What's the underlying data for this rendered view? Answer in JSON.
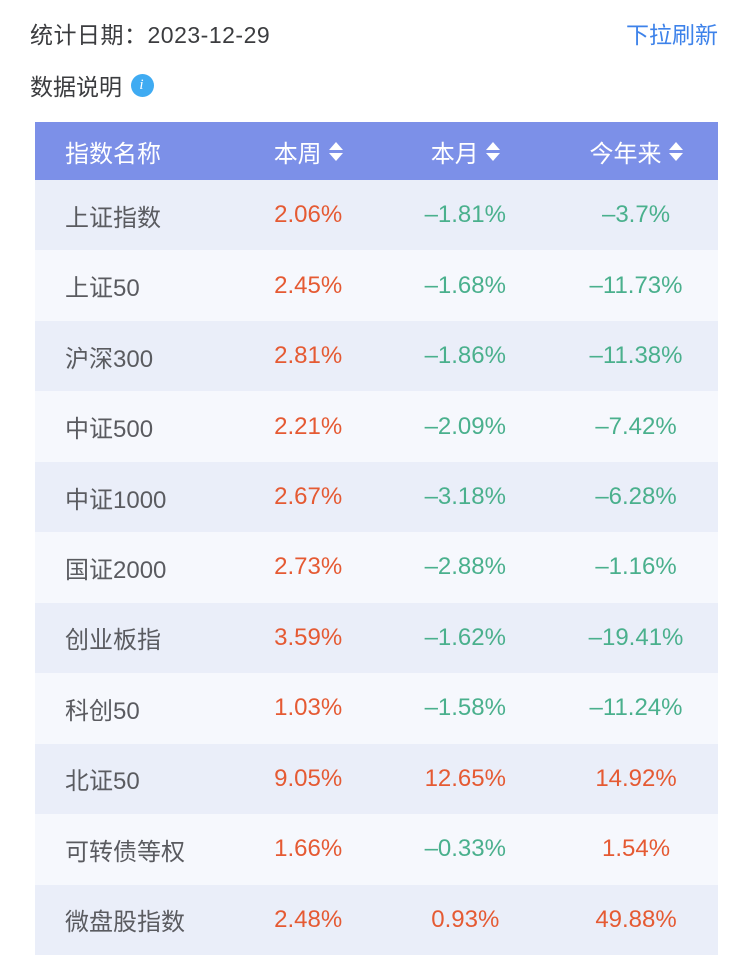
{
  "topbar": {
    "stat_date": "统计日期：2023-12-29",
    "refresh_label": "下拉刷新"
  },
  "note": {
    "label": "数据说明",
    "info_icon_glyph": "i"
  },
  "colors": {
    "table_header_bg": "#7c90e8",
    "row_odd_bg": "#eaeef9",
    "row_even_bg": "#f6f8fd",
    "positive_value": "#e55a33",
    "negative_value": "#4ab08d",
    "link_blue": "#3d82ea",
    "info_icon_blue": "#3fabf2",
    "index_name_text": "#5a5b60",
    "top_text": "#3b3c3f"
  },
  "table": {
    "columns": [
      {
        "key": "name",
        "label": "指数名称",
        "sortable": false
      },
      {
        "key": "week",
        "label": "本周",
        "sortable": true
      },
      {
        "key": "month",
        "label": "本月",
        "sortable": true
      },
      {
        "key": "ytd",
        "label": "今年来",
        "sortable": true
      }
    ],
    "rows": [
      {
        "name": "上证指数",
        "values": [
          "2.06%",
          "–1.81%",
          "–3.7%"
        ]
      },
      {
        "name": "上证50",
        "values": [
          "2.45%",
          "–1.68%",
          "–11.73%"
        ]
      },
      {
        "name": "沪深300",
        "values": [
          "2.81%",
          "–1.86%",
          "–11.38%"
        ]
      },
      {
        "name": "中证500",
        "values": [
          "2.21%",
          "–2.09%",
          "–7.42%"
        ]
      },
      {
        "name": "中证1000",
        "values": [
          "2.67%",
          "–3.18%",
          "–6.28%"
        ]
      },
      {
        "name": "国证2000",
        "values": [
          "2.73%",
          "–2.88%",
          "–1.16%"
        ]
      },
      {
        "name": "创业板指",
        "values": [
          "3.59%",
          "–1.62%",
          "–19.41%"
        ]
      },
      {
        "name": "科创50",
        "values": [
          "1.03%",
          "–1.58%",
          "–11.24%"
        ]
      },
      {
        "name": "北证50",
        "values": [
          "9.05%",
          "12.65%",
          "14.92%"
        ]
      },
      {
        "name": "可转债等权",
        "values": [
          "1.66%",
          "–0.33%",
          "1.54%"
        ]
      },
      {
        "name": "微盘股指数",
        "values": [
          "2.48%",
          "0.93%",
          "49.88%"
        ]
      }
    ]
  }
}
